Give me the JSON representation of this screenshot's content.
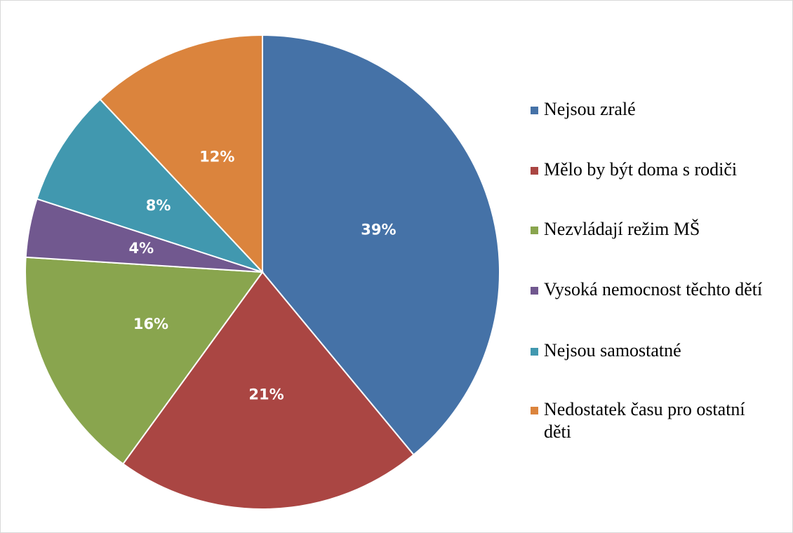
{
  "chart_data": {
    "type": "pie",
    "categories": [
      "Nejsou zralé",
      "Mělo by být doma s rodiči",
      "Nezvládají režim MŠ",
      "Vysoká nemocnost těchto dětí",
      "Nejsou samostatné",
      "Nedostatek času pro ostatní děti"
    ],
    "values": [
      39,
      21,
      16,
      4,
      8,
      12
    ],
    "value_labels": [
      "39%",
      "21%",
      "16%",
      "4%",
      "8%",
      "12%"
    ],
    "colors": [
      "#4572a7",
      "#aa4643",
      "#89a54e",
      "#71588f",
      "#4198af",
      "#db843d"
    ],
    "legend": "right"
  }
}
